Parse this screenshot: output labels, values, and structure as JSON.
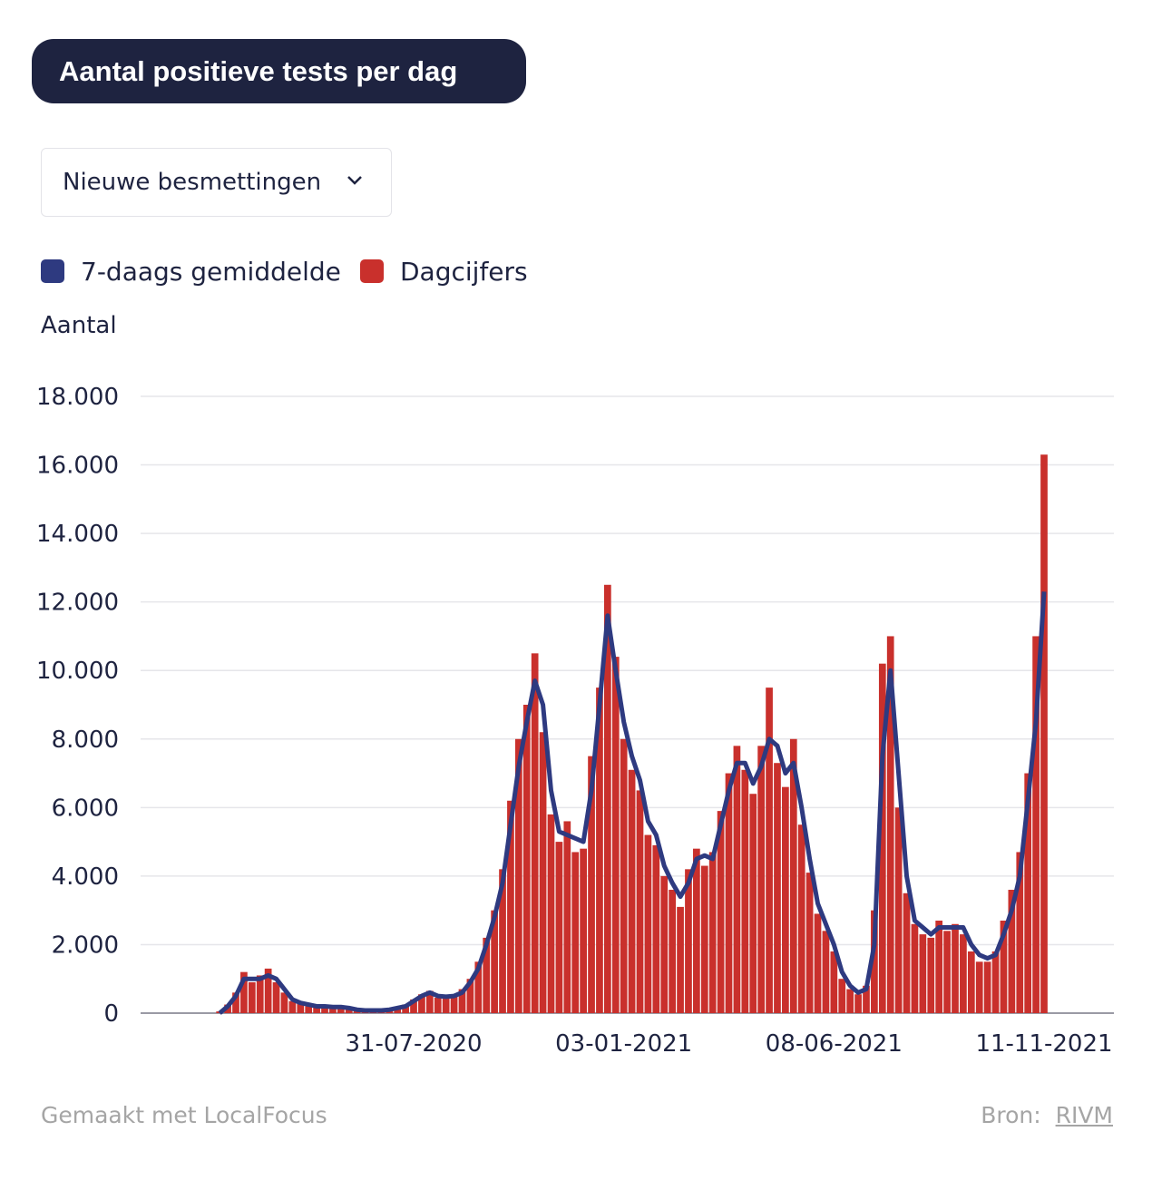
{
  "chart_data": {
    "type": "bar-line",
    "title": "Aantal positieve tests per dag",
    "dropdown": "Nieuwe besmettingen",
    "y_label": "Aantal",
    "footer_left": "Gemaakt met LocalFocus",
    "source_label": "Bron:",
    "source": "RIVM",
    "categories": [
      null,
      null,
      null,
      null,
      null,
      null,
      null,
      null,
      null,
      null,
      null,
      null,
      null,
      null,
      null,
      null,
      null,
      null,
      null,
      null,
      null,
      null,
      null,
      null,
      "31-07-2020",
      null,
      null,
      null,
      null,
      null,
      null,
      null,
      null,
      null,
      null,
      null,
      null,
      null,
      null,
      null,
      null,
      null,
      null,
      null,
      null,
      null,
      null,
      null,
      null,
      null,
      "03-01-2021",
      null,
      null,
      null,
      null,
      null,
      null,
      null,
      null,
      null,
      null,
      null,
      null,
      null,
      null,
      null,
      null,
      null,
      null,
      null,
      null,
      null,
      null,
      null,
      null,
      null,
      "08-06-2021",
      null,
      null,
      null,
      null,
      null,
      null,
      null,
      null,
      null,
      null,
      null,
      null,
      null,
      null,
      null,
      null,
      null,
      null,
      null,
      null,
      null,
      null,
      null,
      null,
      null,
      "11-11-2021"
    ],
    "series": [
      {
        "name": "7-daags gemiddelde",
        "color": "#2e3a80",
        "values": [
          0,
          200,
          500,
          1000,
          1000,
          1000,
          1100,
          1000,
          700,
          400,
          300,
          250,
          200,
          200,
          180,
          180,
          150,
          100,
          80,
          80,
          80,
          100,
          150,
          200,
          350,
          500,
          600,
          500,
          480,
          500,
          600,
          900,
          1300,
          2000,
          2800,
          3800,
          5500,
          7200,
          8500,
          9700,
          9000,
          6500,
          5300,
          5200,
          5100,
          5000,
          6500,
          9000,
          11600,
          10000,
          8500,
          7500,
          6800,
          5600,
          5200,
          4300,
          3800,
          3400,
          3800,
          4500,
          4600,
          4500,
          5500,
          6500,
          7300,
          7300,
          6700,
          7200,
          8000,
          7800,
          7000,
          7300,
          6000,
          4500,
          3200,
          2600,
          2000,
          1200,
          800,
          600,
          700,
          2000,
          7500,
          10000,
          7000,
          4000,
          2700,
          2500,
          2300,
          2500,
          2500,
          2500,
          2500,
          2000,
          1700,
          1600,
          1700,
          2300,
          3000,
          4000,
          6200,
          8500,
          12300
        ]
      },
      {
        "name": "Dagcijfers",
        "color": "#c9302c",
        "values": [
          50,
          250,
          600,
          1200,
          900,
          1100,
          1300,
          900,
          600,
          350,
          300,
          200,
          200,
          180,
          150,
          200,
          120,
          90,
          70,
          90,
          80,
          120,
          180,
          250,
          400,
          550,
          650,
          450,
          500,
          550,
          700,
          1000,
          1500,
          2200,
          3000,
          4200,
          6200,
          8000,
          9000,
          10500,
          8200,
          5800,
          5000,
          5600,
          4700,
          4800,
          7500,
          9500,
          12500,
          10400,
          8000,
          7100,
          6500,
          5200,
          4900,
          4000,
          3600,
          3100,
          4200,
          4800,
          4300,
          4700,
          5900,
          7000,
          7800,
          7100,
          6400,
          7800,
          9500,
          7300,
          6600,
          8000,
          5500,
          4100,
          2900,
          2400,
          1800,
          1000,
          700,
          550,
          800,
          3000,
          10200,
          11000,
          6000,
          3500,
          2600,
          2300,
          2200,
          2700,
          2400,
          2600,
          2300,
          1800,
          1500,
          1500,
          1800,
          2700,
          3600,
          4700,
          7000,
          11000,
          16300
        ]
      }
    ],
    "ylim": [
      0,
      18000
    ],
    "yticks": [
      0,
      {
        "value": 2000,
        "label": "2.000"
      },
      {
        "value": 4000,
        "label": "4.000"
      },
      {
        "value": 6000,
        "label": "6.000"
      },
      {
        "value": 8000,
        "label": "8.000"
      },
      {
        "value": 10000,
        "label": "10.000"
      },
      {
        "value": 12000,
        "label": "12.000"
      },
      {
        "value": 14000,
        "label": "14.000"
      },
      {
        "value": 16000,
        "label": "16.000"
      },
      {
        "value": 18000,
        "label": "18.000"
      }
    ],
    "grid": true
  }
}
